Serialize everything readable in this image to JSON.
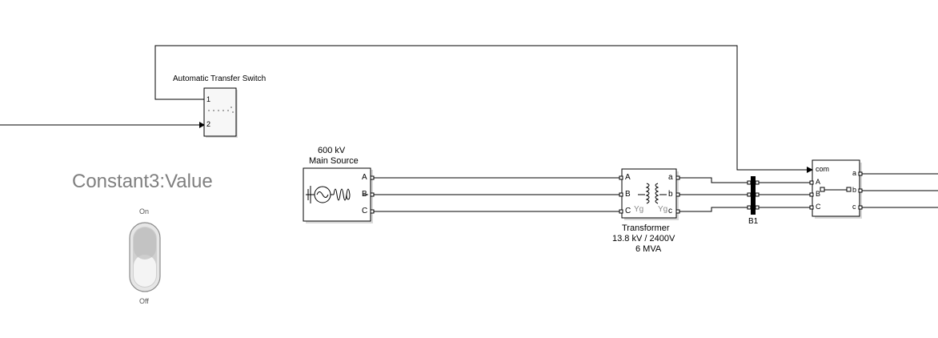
{
  "diagram": {
    "ats_block": {
      "title": "Automatic Transfer Switch",
      "port_1": "1",
      "port_2": "2"
    },
    "constant_label": "Constant3:Value",
    "toggle": {
      "on_label": "On",
      "off_label": "Off",
      "state": "Off"
    },
    "main_source": {
      "line1": "600 kV",
      "line2": "Main Source",
      "ports": [
        "A",
        "B",
        "C"
      ]
    },
    "transformer": {
      "line1": "Transformer",
      "line2": "13.8 kV / 2400V",
      "line3": "6 MVA",
      "left_ports": [
        "A",
        "B",
        "C"
      ],
      "right_ports": [
        "a",
        "b",
        "c"
      ],
      "winding_left": "Yg",
      "winding_right": "Yg"
    },
    "bus": {
      "label": "B1"
    },
    "breaker": {
      "com_label": "com",
      "left_ports": [
        "A",
        "B",
        "C"
      ],
      "right_ports": [
        "a",
        "b",
        "c"
      ]
    }
  }
}
